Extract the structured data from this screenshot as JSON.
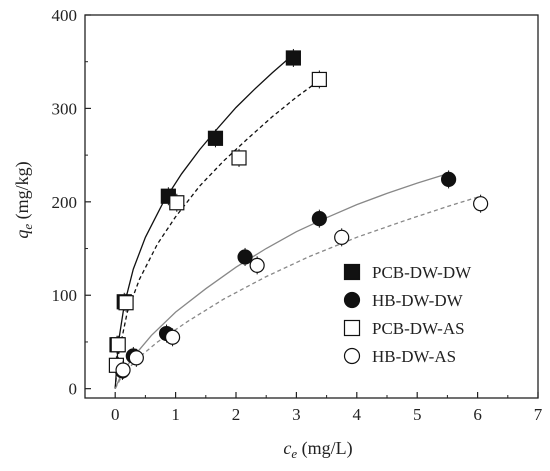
{
  "chart_data": {
    "type": "scatter",
    "xlabel": {
      "symbol": "c",
      "sub": "e",
      "unit": " (mg/L)"
    },
    "ylabel": {
      "symbol": "q",
      "sub": "e",
      "unit": " (mg/kg)"
    },
    "xlim": [
      -0.5,
      7
    ],
    "ylim": [
      -10,
      400
    ],
    "x_ticks": [
      0,
      1,
      2,
      3,
      4,
      5,
      6,
      7
    ],
    "y_ticks": [
      0,
      100,
      200,
      300,
      400
    ],
    "grid": false,
    "legend_position": "bottom-right",
    "series": [
      {
        "name": "PCB-DW-DW",
        "marker": "square-filled",
        "color": "#111111",
        "points": [
          [
            0.03,
            47
          ],
          [
            0.15,
            93
          ],
          [
            0.88,
            206
          ],
          [
            1.66,
            268
          ],
          [
            2.95,
            354
          ]
        ],
        "fit": {
          "line": "solid",
          "color": "#111111",
          "x": [
            0,
            0.05,
            0.15,
            0.3,
            0.5,
            0.8,
            1.1,
            1.4,
            1.7,
            2.0,
            2.3,
            2.6,
            2.9,
            3.0
          ],
          "y": [
            0,
            48,
            90,
            128,
            162,
            200,
            230,
            256,
            279,
            301,
            320,
            338,
            355,
            360
          ]
        }
      },
      {
        "name": "HB-DW-DW",
        "marker": "circle-filled",
        "color": "#111111",
        "points": [
          [
            0.12,
            19
          ],
          [
            0.3,
            35
          ],
          [
            0.85,
            59
          ],
          [
            2.15,
            141
          ],
          [
            3.38,
            182
          ],
          [
            5.52,
            224
          ]
        ],
        "fit": {
          "line": "solid",
          "color": "#888888",
          "x": [
            0,
            0.1,
            0.3,
            0.6,
            1.0,
            1.5,
            2.0,
            2.5,
            3.0,
            3.5,
            4.0,
            4.5,
            5.0,
            5.5
          ],
          "y": [
            0,
            15,
            34,
            57,
            82,
            107,
            130,
            150,
            168,
            183,
            197,
            209,
            220,
            230
          ]
        }
      },
      {
        "name": "PCB-DW-AS",
        "marker": "square-open",
        "color": "#111111",
        "points": [
          [
            0.02,
            25
          ],
          [
            0.05,
            47
          ],
          [
            0.18,
            92
          ],
          [
            1.02,
            199
          ],
          [
            2.05,
            247
          ],
          [
            3.38,
            331
          ]
        ],
        "fit": {
          "line": "dashed",
          "color": "#111111",
          "x": [
            0,
            0.05,
            0.2,
            0.4,
            0.7,
            1.0,
            1.4,
            1.8,
            2.2,
            2.6,
            3.0,
            3.4
          ],
          "y": [
            0,
            35,
            82,
            117,
            155,
            184,
            217,
            244,
            268,
            291,
            312,
            331
          ]
        }
      },
      {
        "name": "HB-DW-AS",
        "marker": "circle-open",
        "color": "#111111",
        "points": [
          [
            0.13,
            20
          ],
          [
            0.35,
            33
          ],
          [
            0.95,
            55
          ],
          [
            2.35,
            132
          ],
          [
            3.75,
            162
          ],
          [
            6.05,
            198
          ]
        ],
        "fit": {
          "line": "dashed",
          "color": "#888888",
          "x": [
            0,
            0.1,
            0.35,
            0.7,
            1.2,
            1.8,
            2.5,
            3.2,
            4.0,
            4.8,
            5.5,
            6.05
          ],
          "y": [
            0,
            12,
            31,
            50,
            72,
            96,
            120,
            141,
            162,
            180,
            195,
            206
          ]
        }
      }
    ]
  }
}
